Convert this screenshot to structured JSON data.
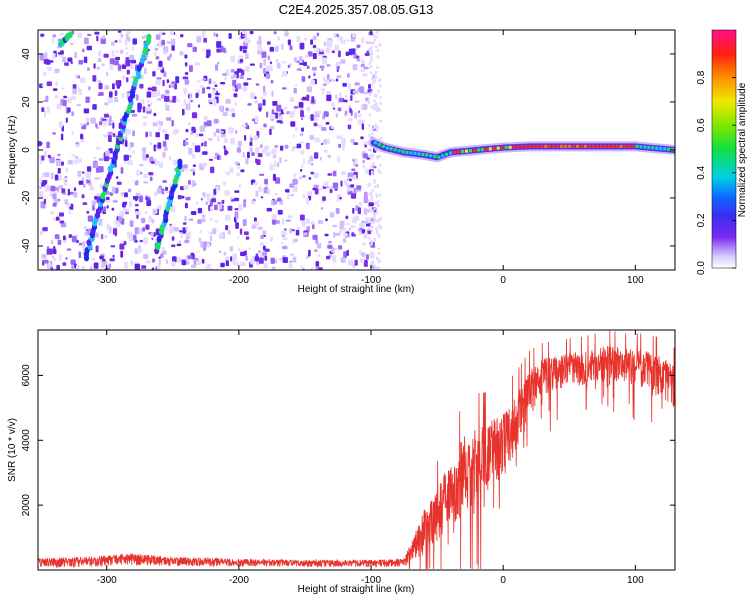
{
  "title": "C2E4.2025.357.08.05.G13",
  "chart_data": [
    {
      "type": "heatmap",
      "name": "spectrogram",
      "xlabel": "Height of straight line (km)",
      "ylabel": "Frequency (Hz)",
      "xlim": [
        -352,
        130
      ],
      "ylim": [
        -50,
        50
      ],
      "x_ticks": [
        -300,
        -200,
        -100,
        0,
        100
      ],
      "y_ticks": [
        -40,
        -20,
        0,
        20,
        40
      ],
      "noise_region_x": [
        -352,
        -98
      ],
      "signal_line": {
        "x_start": -98,
        "x_end": 130,
        "frequency": [
          [
            -98,
            3
          ],
          [
            -90,
            1
          ],
          [
            -75,
            -1
          ],
          [
            -60,
            -2
          ],
          [
            -50,
            -3
          ],
          [
            -40,
            -1
          ],
          [
            -30,
            -0.5
          ],
          [
            -20,
            0
          ],
          [
            0,
            1
          ],
          [
            20,
            1.5
          ],
          [
            60,
            1.5
          ],
          [
            100,
            1.5
          ],
          [
            130,
            0
          ]
        ]
      },
      "tracks": [
        {
          "x": [
            -316,
            -268
          ],
          "y": [
            -45,
            47
          ]
        },
        {
          "x": [
            -262,
            -244
          ],
          "y": [
            -42,
            -5
          ]
        },
        {
          "x": [
            -335,
            -328
          ],
          "y": [
            44,
            48
          ]
        }
      ],
      "colorbar": {
        "label": "Normalized spectral amplitude",
        "range": [
          0,
          1
        ],
        "ticks": [
          0,
          0.2,
          0.4,
          0.6,
          0.8
        ],
        "tick_labels": [
          "0.0",
          "0.2",
          "0.4",
          "0.6",
          "0.8"
        ]
      }
    },
    {
      "type": "line",
      "name": "snr",
      "xlabel": "Height of straight line (km)",
      "ylabel": "SNR (10 * v/v)",
      "xlim": [
        -352,
        130
      ],
      "ylim": [
        0,
        7400
      ],
      "x_ticks": [
        -300,
        -200,
        -100,
        0,
        100
      ],
      "y_ticks": [
        2000,
        4000,
        6000
      ],
      "color": "#e8322c",
      "envelope": {
        "x": [
          -352,
          -310,
          -280,
          -250,
          -200,
          -150,
          -100,
          -75,
          -70,
          -60,
          -50,
          -40,
          -30,
          -20,
          -10,
          0,
          10,
          20,
          30,
          40,
          50,
          60,
          70,
          80,
          90,
          100,
          110,
          120,
          130
        ],
        "mean": [
          250,
          300,
          380,
          300,
          250,
          230,
          230,
          250,
          600,
          1300,
          1900,
          2600,
          3200,
          3500,
          3800,
          4100,
          4700,
          5600,
          6100,
          6200,
          6300,
          6350,
          6450,
          6500,
          6450,
          6400,
          6300,
          6100,
          5800
        ],
        "spread": [
          180,
          200,
          230,
          180,
          150,
          140,
          140,
          160,
          500,
          900,
          1100,
          1300,
          1500,
          1500,
          1300,
          1200,
          1100,
          900,
          700,
          650,
          650,
          650,
          650,
          700,
          650,
          700,
          750,
          800,
          800
        ]
      }
    }
  ]
}
